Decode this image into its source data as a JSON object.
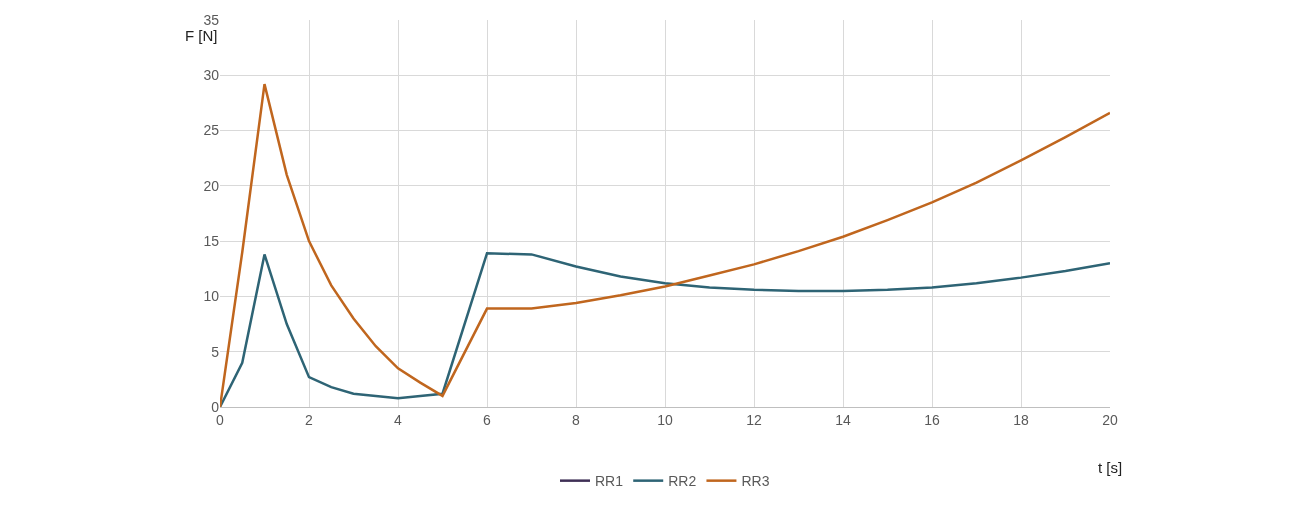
{
  "chart_data": {
    "type": "line",
    "xlabel": "t [s]",
    "ylabel": "F [N]",
    "x": [
      0,
      0.5,
      1,
      1.5,
      2,
      2.5,
      3,
      3.5,
      4,
      4.5,
      5,
      6,
      7,
      8,
      9,
      10,
      11,
      12,
      13,
      14,
      15,
      16,
      17,
      18,
      19,
      20
    ],
    "series": [
      {
        "name": "RR1",
        "color": "#3f2f55",
        "values": [
          null,
          null,
          null,
          null,
          null,
          null,
          null,
          null,
          null,
          null,
          null,
          null,
          null,
          null,
          null,
          null,
          null,
          null,
          null,
          null,
          null,
          null,
          null,
          null,
          null,
          null
        ]
      },
      {
        "name": "RR2",
        "color": "#2e6475",
        "values": [
          0,
          4,
          13.8,
          7.5,
          2.7,
          1.8,
          1.2,
          1.0,
          0.8,
          1.0,
          1.2,
          13.9,
          13.8,
          12.7,
          11.8,
          11.2,
          10.8,
          10.6,
          10.5,
          10.5,
          10.6,
          10.8,
          11.2,
          11.7,
          12.3,
          13.0
        ]
      },
      {
        "name": "RR3",
        "color": "#c0661e",
        "values": [
          0,
          14,
          29.2,
          21,
          15,
          11,
          8,
          5.5,
          3.5,
          2.2,
          1.0,
          8.9,
          8.9,
          9.4,
          10.1,
          10.9,
          11.9,
          12.9,
          14.1,
          15.4,
          16.9,
          18.5,
          20.3,
          22.3,
          24.4,
          26.6
        ]
      }
    ],
    "xlim": [
      0,
      20
    ],
    "xticks": [
      0,
      2,
      4,
      6,
      8,
      10,
      12,
      14,
      16,
      18,
      20
    ],
    "ylim": [
      0,
      35
    ],
    "yticks": [
      0,
      5,
      10,
      15,
      20,
      25,
      30,
      35
    ],
    "grid": true,
    "legend": "bottom",
    "marker": "none",
    "line_style": "solid"
  }
}
